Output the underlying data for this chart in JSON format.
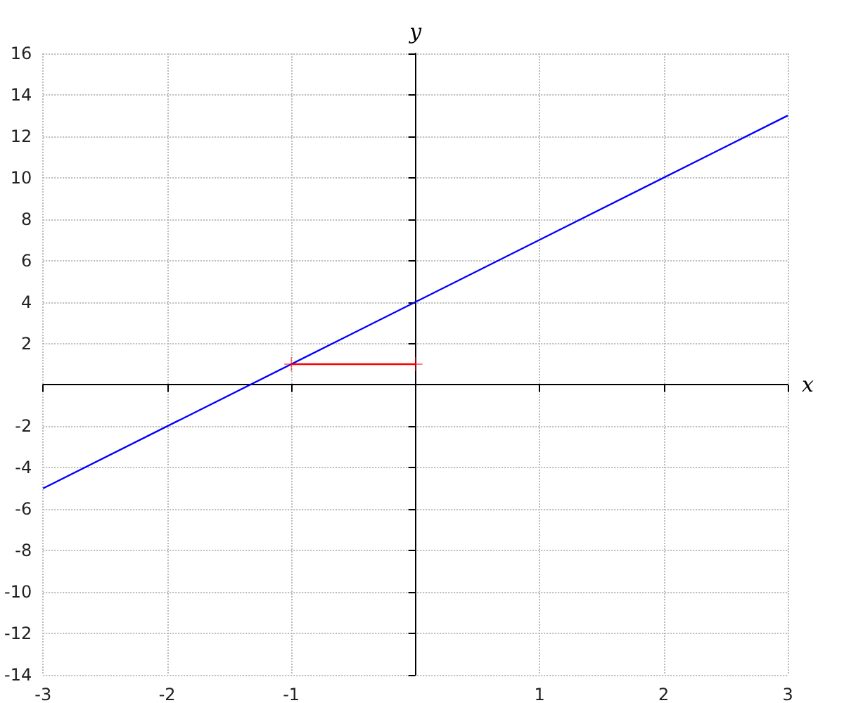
{
  "chart_data": {
    "type": "line",
    "xlabel": "x",
    "ylabel": "y",
    "xlim": [
      -3,
      3
    ],
    "ylim": [
      -14,
      16
    ],
    "xticks": [
      -3,
      -2,
      -1,
      1,
      2,
      3
    ],
    "yticks": [
      -14,
      -12,
      -10,
      -8,
      -6,
      -4,
      -2,
      2,
      4,
      6,
      8,
      10,
      12,
      14,
      16
    ],
    "grid": true,
    "marker": "none",
    "line_style": "solid",
    "series": [
      {
        "color": "#0000ff",
        "x": [
          -3,
          3
        ],
        "values": [
          -5,
          13
        ]
      },
      {
        "color": "#ff0000",
        "x": [
          -1,
          0
        ],
        "values": [
          1,
          1
        ],
        "marker": "cross"
      }
    ]
  }
}
